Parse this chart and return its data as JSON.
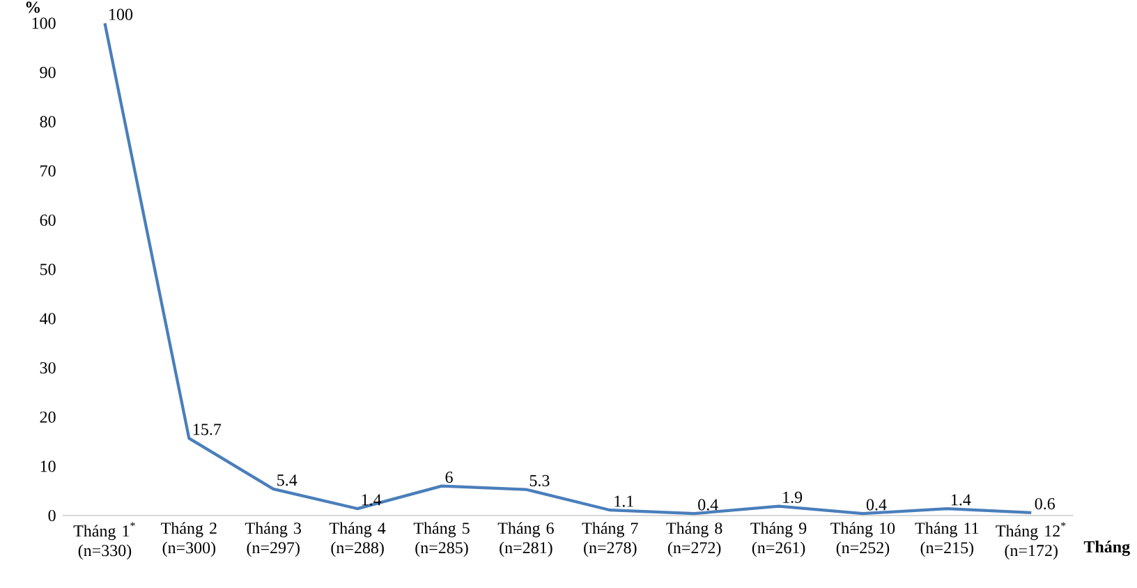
{
  "chart_data": {
    "type": "line",
    "xlabel": "Tháng",
    "ylabel": "%",
    "categories": [
      "Tháng 1$^{*}$ (n=330)",
      "Tháng 2 (n=300)",
      "Tháng 3 (n=297)",
      "Tháng 4 (n=288)",
      "Tháng 5 (n=285)",
      "Tháng 6 (n=281)",
      "Tháng 7 (n=278)",
      "Tháng 8 (n=272)",
      "Tháng 9 (n=261)",
      "Tháng 10 (n=252)",
      "Tháng 11 (n=215)",
      "Tháng 12$^{*}$ (n=172)"
    ],
    "values": [
      100,
      15.7,
      5.4,
      1.4,
      6,
      5.3,
      1.1,
      0.4,
      1.9,
      0.4,
      1.4,
      0.6
    ],
    "color": "#4a7ebb",
    "ylim": [
      0,
      100
    ],
    "yticks": [
      0,
      10,
      20,
      30,
      40,
      50,
      60,
      70,
      80,
      90,
      100
    ],
    "data_labels": true,
    "marker": "none",
    "line_style": "solid"
  }
}
